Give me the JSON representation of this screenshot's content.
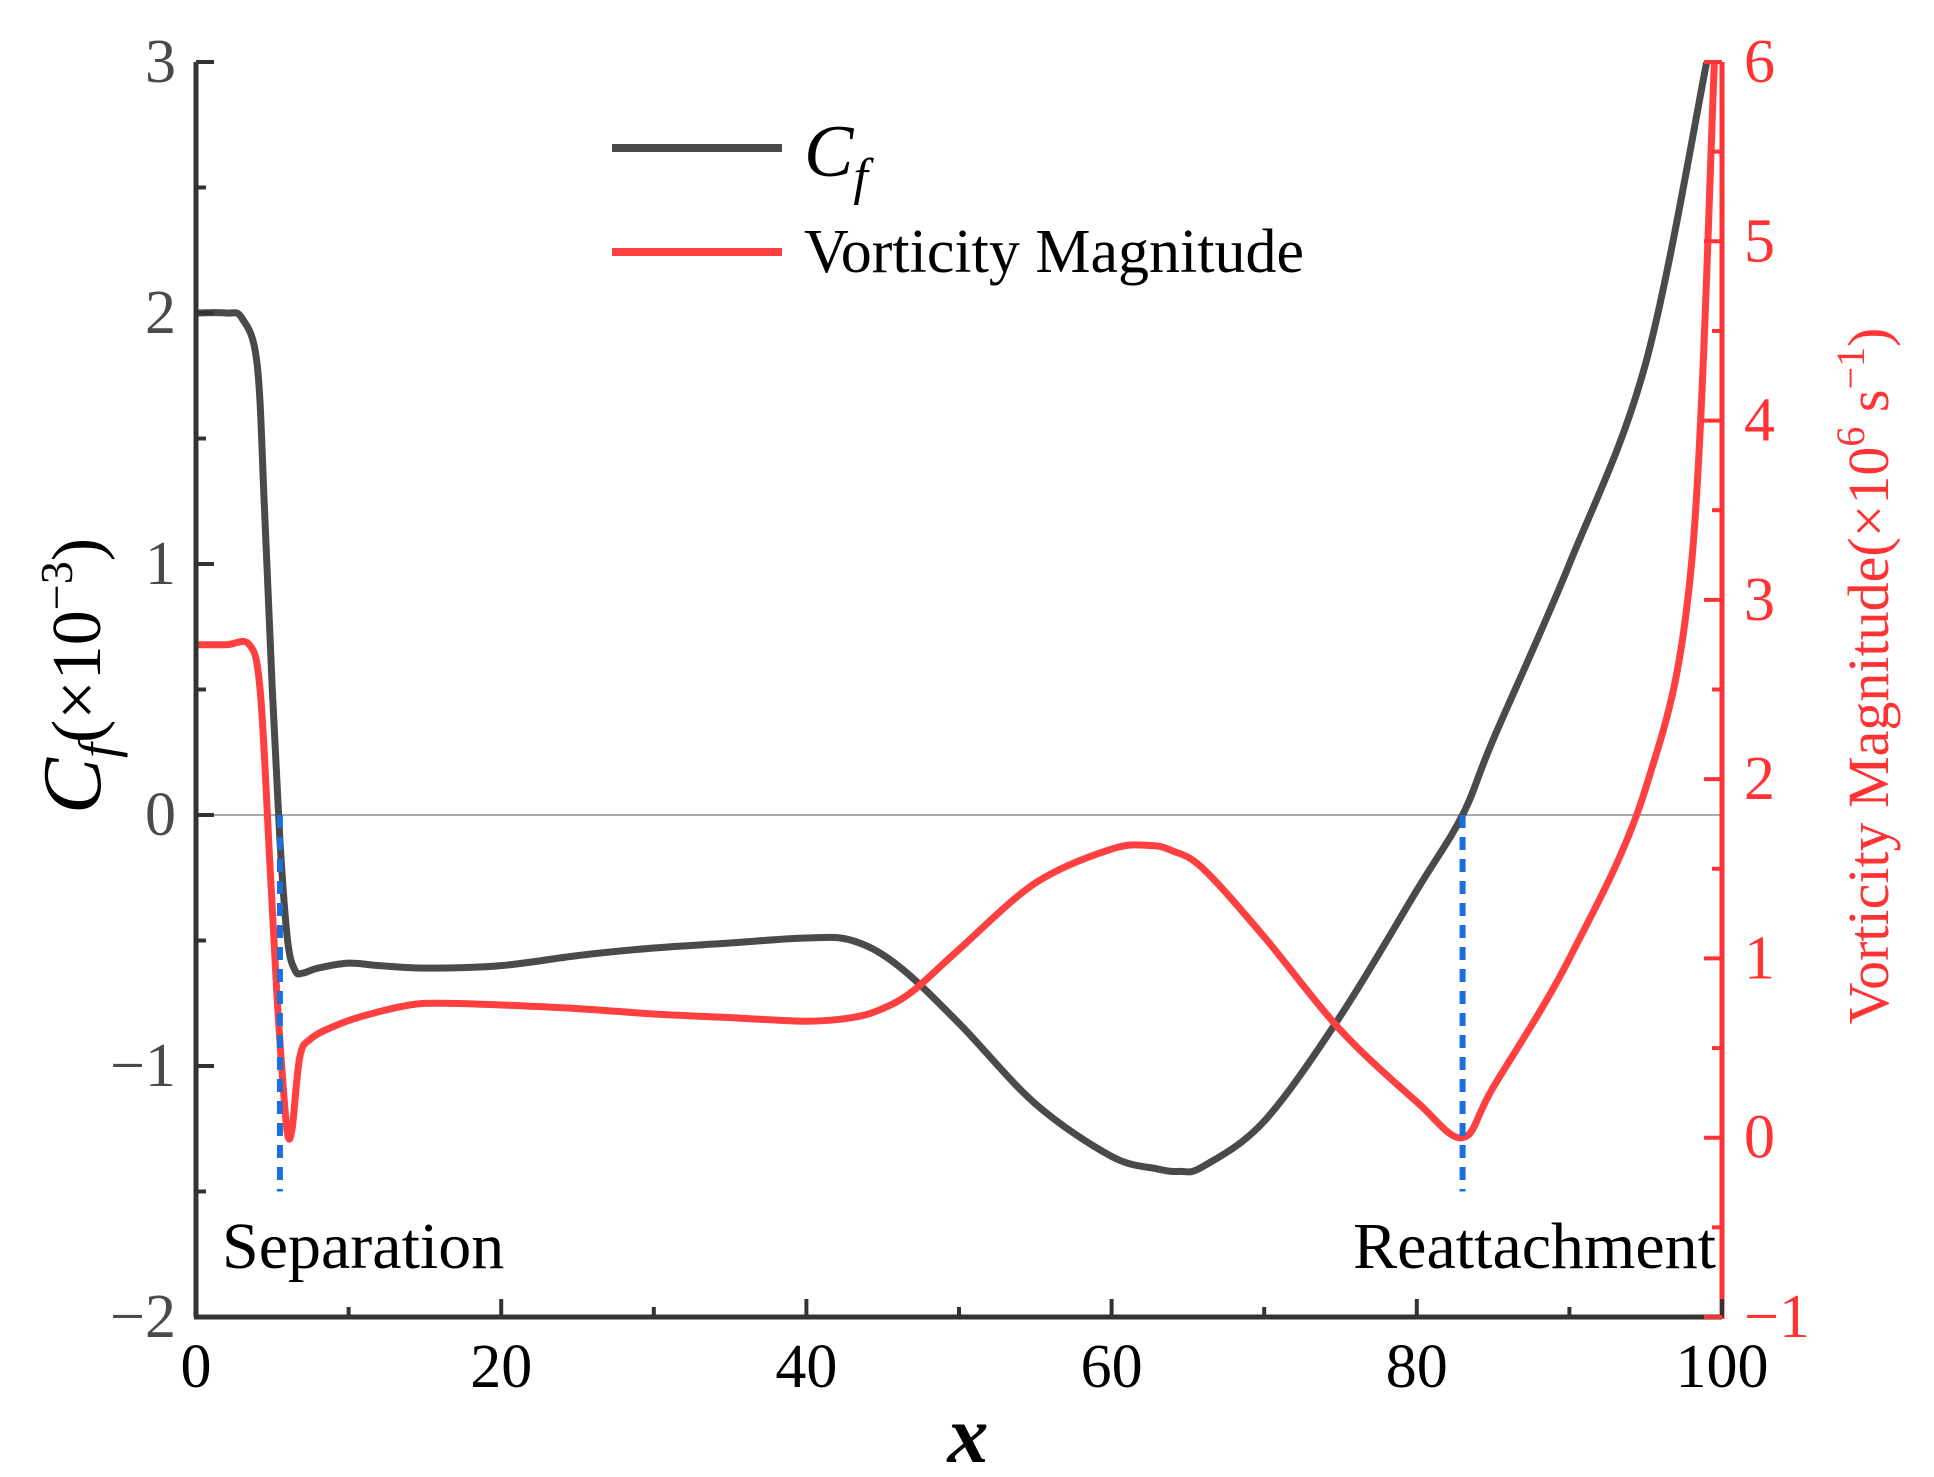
{
  "chart_data": {
    "type": "line",
    "xlabel": "x",
    "ylabel": {
      "symbol": "C",
      "subscript": "f",
      "unit_pre": "(×10",
      "unit_exp": "−3",
      "unit_post": ")"
    },
    "ylabel_right": {
      "main": "Vorticity Magnitude(×10",
      "exp1": "6",
      "mid": " s",
      "exp2": "−1",
      "post": ")"
    },
    "x_ticks": [
      "0",
      "20",
      "40",
      "60",
      "80",
      "100"
    ],
    "y_left_ticks": [
      "−2",
      "−1",
      "0",
      "1",
      "2",
      "3"
    ],
    "y_right_ticks": [
      "−1",
      "0",
      "1",
      "2",
      "3",
      "4",
      "5",
      "6"
    ],
    "xlim": [
      0,
      100
    ],
    "ylim_left": [
      -2,
      3
    ],
    "ylim_right": [
      -1,
      6
    ],
    "colors": {
      "cf": "#4a4a4a",
      "vort": "#ff4040",
      "marker": "#1a6fdc",
      "right_axis": "#ff3333",
      "zero_line": "#aaaaaa"
    },
    "legend": {
      "cf": {
        "symbol": "C",
        "subscript": "f"
      },
      "vort": "Vorticity Magnitude",
      "position": "top-center"
    },
    "annotations": {
      "separation": {
        "label": "Separation",
        "x": 5.5
      },
      "reattachment": {
        "label": "Reattachment",
        "x": 83
      }
    },
    "series": [
      {
        "name": "Cf",
        "axis": "left",
        "x": [
          0,
          2,
          3,
          4,
          4.5,
          5,
          5.5,
          6,
          6.5,
          7,
          8,
          10,
          12,
          15,
          20,
          25,
          30,
          35,
          40,
          43,
          46,
          50,
          55,
          60,
          63,
          64.5,
          66,
          70,
          75,
          80,
          83,
          85,
          90,
          95,
          99
        ],
        "values": [
          2.0,
          2.0,
          1.98,
          1.8,
          1.2,
          0.5,
          -0.1,
          -0.5,
          -0.62,
          -0.63,
          -0.61,
          -0.59,
          -0.6,
          -0.61,
          -0.6,
          -0.56,
          -0.53,
          -0.51,
          -0.49,
          -0.5,
          -0.6,
          -0.83,
          -1.15,
          -1.36,
          -1.41,
          -1.42,
          -1.4,
          -1.22,
          -0.8,
          -0.3,
          0.0,
          0.3,
          1.0,
          1.8,
          3.0
        ]
      },
      {
        "name": "Vorticity Magnitude",
        "axis": "right",
        "x": [
          0,
          2,
          3.5,
          4.2,
          4.8,
          5.3,
          5.7,
          6.0,
          6.3,
          6.8,
          7.5,
          9,
          11,
          14,
          16,
          20,
          25,
          30,
          35,
          40,
          43,
          45,
          47,
          50,
          55,
          60,
          62.5,
          64,
          66,
          70,
          75,
          80,
          83,
          85,
          90,
          95,
          98,
          99.5
        ],
        "values": [
          2.75,
          2.75,
          2.75,
          2.5,
          1.6,
          0.8,
          0.3,
          0.02,
          0.05,
          0.45,
          0.55,
          0.62,
          0.68,
          0.74,
          0.75,
          0.74,
          0.72,
          0.69,
          0.67,
          0.65,
          0.67,
          0.72,
          0.82,
          1.05,
          1.42,
          1.61,
          1.63,
          1.6,
          1.5,
          1.12,
          0.6,
          0.2,
          0.0,
          0.28,
          1.0,
          1.95,
          3.2,
          6.0
        ]
      }
    ]
  }
}
